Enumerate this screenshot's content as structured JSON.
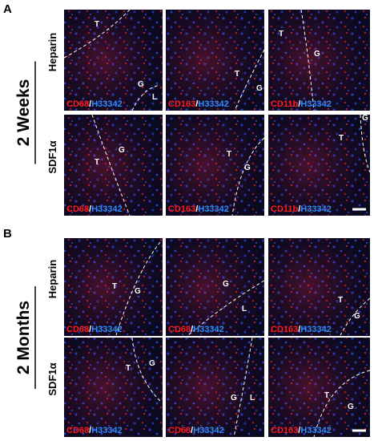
{
  "separator": "/",
  "panels": [
    {
      "letter": "A",
      "period": "2 Weeks",
      "rows": [
        {
          "label": "Heparin",
          "images": [
            {
              "stain": "CD68",
              "counterstain": "H33342",
              "regions": [
                "T",
                "G",
                "L"
              ]
            },
            {
              "stain": "CD163",
              "counterstain": "H33342",
              "regions": [
                "T",
                "G"
              ]
            },
            {
              "stain": "CD11b",
              "counterstain": "H33342",
              "regions": [
                "T",
                "G"
              ]
            }
          ]
        },
        {
          "label": "SDF1α",
          "images": [
            {
              "stain": "CD68",
              "counterstain": "H33342",
              "regions": [
                "G",
                "T"
              ]
            },
            {
              "stain": "CD163",
              "counterstain": "H33342",
              "regions": [
                "T",
                "G"
              ]
            },
            {
              "stain": "CD11b",
              "counterstain": "H33342",
              "regions": [
                "G",
                "T"
              ]
            }
          ]
        }
      ]
    },
    {
      "letter": "B",
      "period": "2 Months",
      "rows": [
        {
          "label": "Heparin",
          "images": [
            {
              "stain": "CD68",
              "counterstain": "H33342",
              "regions": [
                "T",
                "G"
              ]
            },
            {
              "stain": "CD68",
              "counterstain": "H33342",
              "regions": [
                "G",
                "L"
              ]
            },
            {
              "stain": "CD163",
              "counterstain": "H33342",
              "regions": [
                "T",
                "G"
              ]
            }
          ]
        },
        {
          "label": "SDF1α",
          "images": [
            {
              "stain": "CD68",
              "counterstain": "H33342",
              "regions": [
                "T",
                "G"
              ]
            },
            {
              "stain": "CD68",
              "counterstain": "H33342",
              "regions": [
                "G",
                "L"
              ]
            },
            {
              "stain": "CD163",
              "counterstain": "H33342",
              "regions": [
                "T",
                "G"
              ]
            }
          ]
        }
      ]
    }
  ]
}
